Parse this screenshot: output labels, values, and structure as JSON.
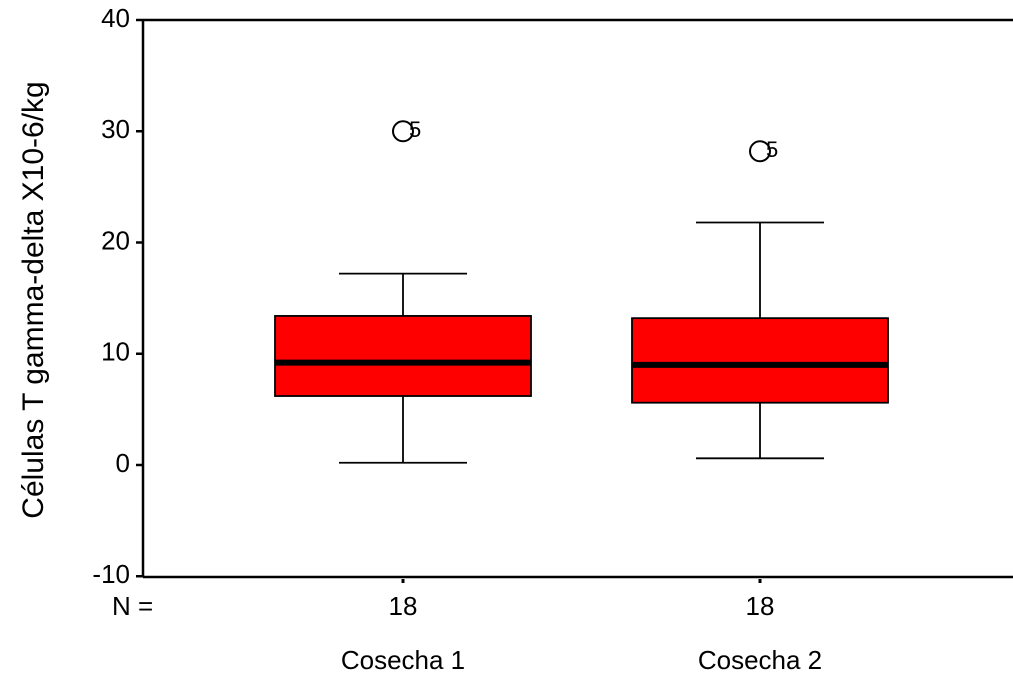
{
  "chart_data": {
    "type": "box",
    "y_label": "Células T gamma-delta X10-6/kg",
    "n_label": "N =",
    "categories": [
      "Cosecha 1",
      "Cosecha 2"
    ],
    "boxes": [
      {
        "min": 0.2,
        "q1": 6.2,
        "median": 9.2,
        "q3": 13.4,
        "max": 17.2,
        "n": 18,
        "outliers": [
          {
            "value": 30.0,
            "case": "5"
          }
        ]
      },
      {
        "min": 0.6,
        "q1": 5.6,
        "median": 9.0,
        "q3": 13.2,
        "max": 21.8,
        "n": 18,
        "outliers": [
          {
            "value": 28.2,
            "case": "5"
          }
        ]
      }
    ],
    "color": "#ff0000",
    "ylim": [
      -10,
      40
    ],
    "yticks": [
      -10,
      0,
      10,
      20,
      30,
      40
    ]
  }
}
